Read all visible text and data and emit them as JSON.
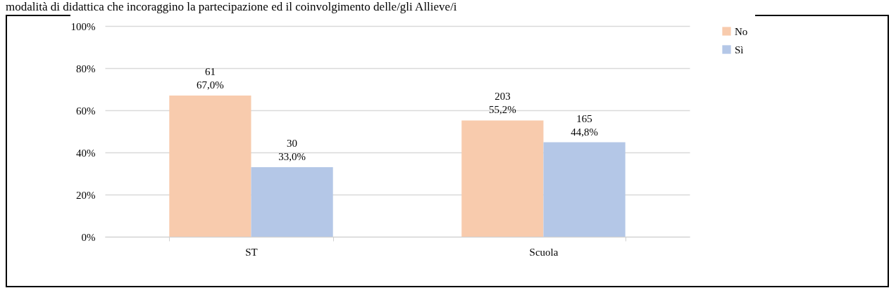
{
  "chart_data": {
    "type": "bar",
    "title": "modalità di didattica che incoraggino la partecipazione ed il coinvolgimento delle/gli Allieve/i",
    "categories": [
      "ST",
      "Scuola"
    ],
    "series": [
      {
        "name": "No",
        "color": "#f8cbad",
        "values": [
          67.0,
          55.2
        ],
        "value_labels": [
          "61\n67,0%",
          "203\n55,2%"
        ]
      },
      {
        "name": "Sì",
        "color": "#b4c7e7",
        "values": [
          33.0,
          44.8
        ],
        "value_labels": [
          "30\n33,0%",
          "165\n44,8%"
        ]
      }
    ],
    "ylim": [
      0,
      100
    ],
    "yticks": [
      {
        "value": 0,
        "label": "0%"
      },
      {
        "value": 20,
        "label": "20%"
      },
      {
        "value": 40,
        "label": "40%"
      },
      {
        "value": 60,
        "label": "60%"
      },
      {
        "value": 80,
        "label": "80%"
      },
      {
        "value": 100,
        "label": "100%"
      }
    ],
    "grid": "y",
    "legend": "right"
  }
}
